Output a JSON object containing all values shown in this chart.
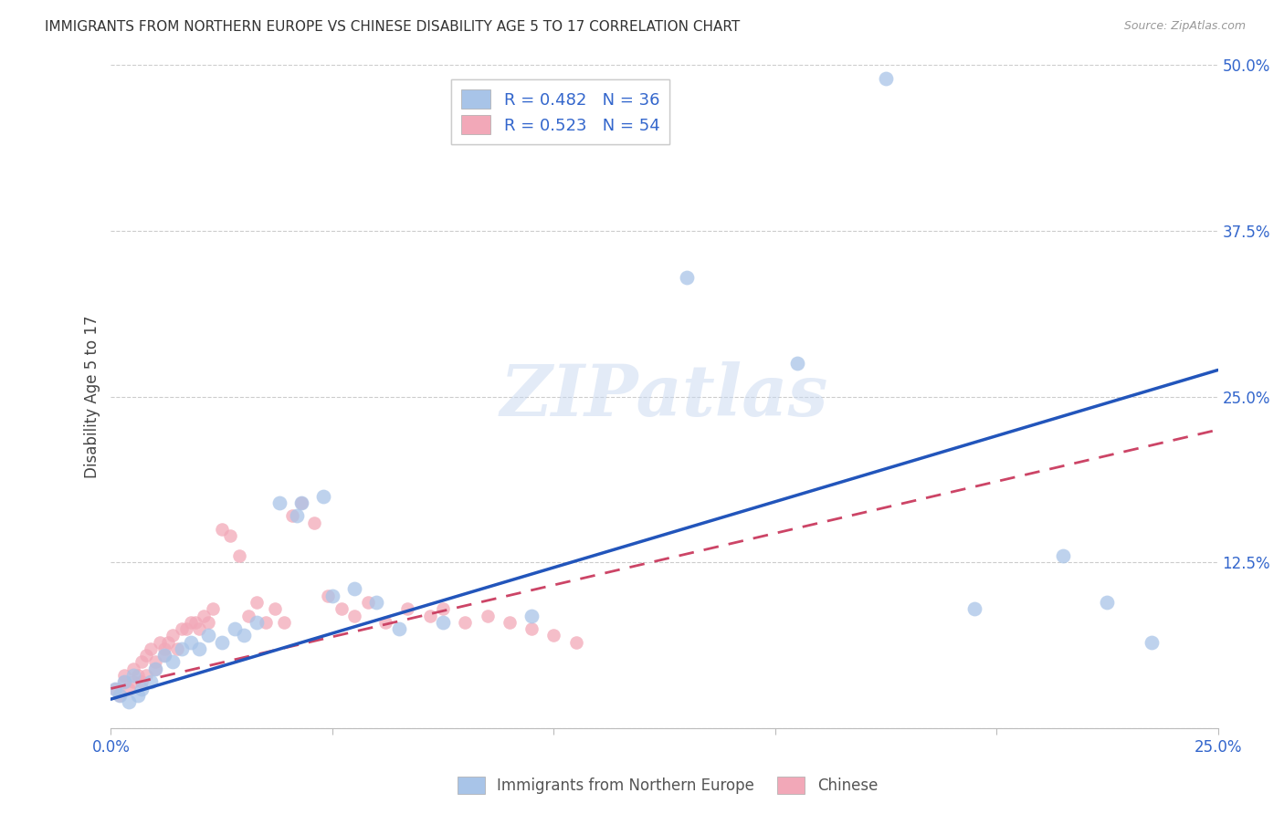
{
  "title": "IMMIGRANTS FROM NORTHERN EUROPE VS CHINESE DISABILITY AGE 5 TO 17 CORRELATION CHART",
  "source": "Source: ZipAtlas.com",
  "ylabel": "Disability Age 5 to 17",
  "xlim": [
    0.0,
    0.25
  ],
  "ylim": [
    0.0,
    0.5
  ],
  "legend_label1": "R = 0.482   N = 36",
  "legend_label2": "R = 0.523   N = 54",
  "legend_bottom1": "Immigrants from Northern Europe",
  "legend_bottom2": "Chinese",
  "blue_color": "#a8c4e8",
  "pink_color": "#f2a8b8",
  "blue_line_color": "#2255bb",
  "pink_line_color": "#cc4466",
  "blue_scatter_x": [
    0.001,
    0.002,
    0.003,
    0.004,
    0.005,
    0.006,
    0.007,
    0.009,
    0.01,
    0.012,
    0.014,
    0.016,
    0.018,
    0.02,
    0.022,
    0.025,
    0.028,
    0.03,
    0.033,
    0.038,
    0.042,
    0.043,
    0.048,
    0.05,
    0.055,
    0.06,
    0.065,
    0.075,
    0.095,
    0.13,
    0.155,
    0.175,
    0.195,
    0.215,
    0.225,
    0.235
  ],
  "blue_scatter_y": [
    0.03,
    0.025,
    0.035,
    0.02,
    0.04,
    0.025,
    0.03,
    0.035,
    0.045,
    0.055,
    0.05,
    0.06,
    0.065,
    0.06,
    0.07,
    0.065,
    0.075,
    0.07,
    0.08,
    0.17,
    0.16,
    0.17,
    0.175,
    0.1,
    0.105,
    0.095,
    0.075,
    0.08,
    0.085,
    0.34,
    0.275,
    0.49,
    0.09,
    0.13,
    0.095,
    0.065
  ],
  "pink_scatter_x": [
    0.001,
    0.002,
    0.003,
    0.003,
    0.004,
    0.005,
    0.005,
    0.006,
    0.007,
    0.007,
    0.008,
    0.008,
    0.009,
    0.01,
    0.01,
    0.011,
    0.012,
    0.012,
    0.013,
    0.014,
    0.015,
    0.016,
    0.017,
    0.018,
    0.019,
    0.02,
    0.021,
    0.022,
    0.023,
    0.025,
    0.027,
    0.029,
    0.031,
    0.033,
    0.035,
    0.037,
    0.039,
    0.041,
    0.043,
    0.046,
    0.049,
    0.052,
    0.055,
    0.058,
    0.062,
    0.067,
    0.072,
    0.075,
    0.08,
    0.085,
    0.09,
    0.095,
    0.1,
    0.105
  ],
  "pink_scatter_y": [
    0.03,
    0.025,
    0.04,
    0.035,
    0.03,
    0.045,
    0.035,
    0.04,
    0.05,
    0.035,
    0.055,
    0.04,
    0.06,
    0.05,
    0.045,
    0.065,
    0.055,
    0.06,
    0.065,
    0.07,
    0.06,
    0.075,
    0.075,
    0.08,
    0.08,
    0.075,
    0.085,
    0.08,
    0.09,
    0.15,
    0.145,
    0.13,
    0.085,
    0.095,
    0.08,
    0.09,
    0.08,
    0.16,
    0.17,
    0.155,
    0.1,
    0.09,
    0.085,
    0.095,
    0.08,
    0.09,
    0.085,
    0.09,
    0.08,
    0.085,
    0.08,
    0.075,
    0.07,
    0.065
  ],
  "blue_line_x0": 0.0,
  "blue_line_y0": 0.022,
  "blue_line_x1": 0.25,
  "blue_line_y1": 0.27,
  "pink_line_x0": 0.0,
  "pink_line_y0": 0.03,
  "pink_line_x1": 0.25,
  "pink_line_y1": 0.225
}
